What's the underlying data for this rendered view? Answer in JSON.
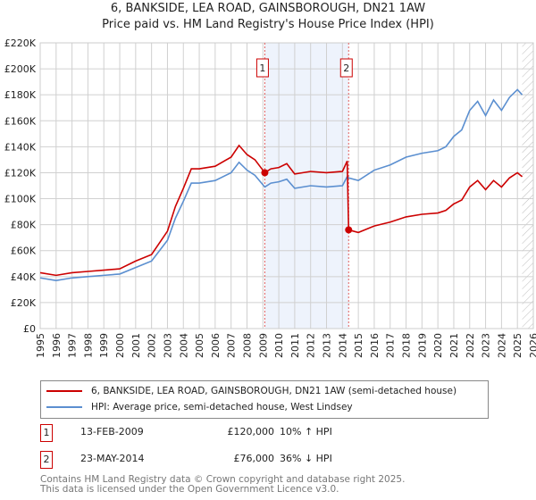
{
  "title": "6, BANKSIDE, LEA ROAD, GAINSBOROUGH, DN21 1AW",
  "subtitle": "Price paid vs. HM Land Registry's House Price Index (HPI)",
  "chart_data": {
    "type": "line",
    "title": "6, BANKSIDE, LEA ROAD, GAINSBOROUGH, DN21 1AW",
    "xlim": [
      1995,
      2026
    ],
    "ylim": [
      0,
      220000
    ],
    "x_ticks": [
      "1995",
      "1996",
      "1997",
      "1998",
      "1999",
      "2000",
      "2001",
      "2002",
      "2003",
      "2004",
      "2005",
      "2006",
      "2007",
      "2008",
      "2009",
      "2010",
      "2011",
      "2012",
      "2013",
      "2014",
      "2015",
      "2016",
      "2017",
      "2018",
      "2019",
      "2020",
      "2021",
      "2022",
      "2023",
      "2024",
      "2025",
      "2026"
    ],
    "y_ticks": [
      "£0",
      "£20K",
      "£40K",
      "£60K",
      "£80K",
      "£100K",
      "£120K",
      "£140K",
      "£160K",
      "£180K",
      "£200K",
      "£220K"
    ],
    "grid": true,
    "shaded_region": [
      2009.12,
      2014.39
    ],
    "hatched_from": 2025.3,
    "series": [
      {
        "name": "6, BANKSIDE, LEA ROAD, GAINSBOROUGH, DN21 1AW (semi-detached house)",
        "color": "#cc0000",
        "x": [
          1995,
          1996,
          1997,
          1998,
          1999,
          2000,
          2001,
          2002,
          2003,
          2003.5,
          2004,
          2004.5,
          2005,
          2006,
          2007,
          2007.5,
          2008,
          2008.5,
          2009.12,
          2009.5,
          2010,
          2010.5,
          2011,
          2012,
          2013,
          2014,
          2014.3,
          2014.39,
          2015,
          2016,
          2017,
          2018,
          2019,
          2020,
          2020.5,
          2021,
          2021.5,
          2022,
          2022.5,
          2023,
          2023.5,
          2024,
          2024.5,
          2025,
          2025.3
        ],
        "y": [
          43000,
          41000,
          43000,
          44000,
          45000,
          46000,
          52000,
          57000,
          75000,
          94000,
          108000,
          123000,
          123000,
          125000,
          132000,
          141000,
          134000,
          130000,
          120000,
          123000,
          124000,
          127000,
          119000,
          121000,
          120000,
          121000,
          129000,
          76000,
          74000,
          79000,
          82000,
          86000,
          88000,
          89000,
          91000,
          96000,
          99000,
          109000,
          114000,
          107000,
          114000,
          109000,
          116000,
          120000,
          117000
        ]
      },
      {
        "name": "HPI: Average price, semi-detached house, West Lindsey",
        "color": "#5b8fd0",
        "x": [
          1995,
          1996,
          1997,
          1998,
          1999,
          2000,
          2001,
          2002,
          2003,
          2003.5,
          2004,
          2004.5,
          2005,
          2006,
          2007,
          2007.5,
          2008,
          2008.5,
          2009.12,
          2009.5,
          2010,
          2010.5,
          2011,
          2012,
          2013,
          2014,
          2014.3,
          2014.39,
          2015,
          2016,
          2017,
          2018,
          2019,
          2020,
          2020.5,
          2021,
          2021.5,
          2022,
          2022.5,
          2023,
          2023.5,
          2024,
          2024.5,
          2025,
          2025.3
        ],
        "y": [
          39000,
          37000,
          39000,
          40000,
          41000,
          42000,
          47000,
          52000,
          68000,
          85000,
          98000,
          112000,
          112000,
          114000,
          120000,
          128000,
          122000,
          118000,
          109000,
          112000,
          113000,
          115000,
          108000,
          110000,
          109000,
          110000,
          117000,
          116000,
          114000,
          122000,
          126000,
          132000,
          135000,
          137000,
          140000,
          148000,
          153000,
          168000,
          175000,
          164000,
          176000,
          168000,
          178000,
          184000,
          180000
        ]
      }
    ],
    "annotations": [
      {
        "label": "1",
        "x": 2009.12,
        "y": 120000
      },
      {
        "label": "2",
        "x": 2014.39,
        "y": 76000
      }
    ]
  },
  "legend": [
    "6, BANKSIDE, LEA ROAD, GAINSBOROUGH, DN21 1AW (semi-detached house)",
    "HPI: Average price, semi-detached house, West Lindsey"
  ],
  "transactions": [
    {
      "num": "1",
      "date": "13-FEB-2009",
      "price": "£120,000",
      "hpi": "10% ↑ HPI"
    },
    {
      "num": "2",
      "date": "23-MAY-2014",
      "price": "£76,000",
      "hpi": "36% ↓ HPI"
    }
  ],
  "footer": [
    "Contains HM Land Registry data © Crown copyright and database right 2025.",
    "This data is licensed under the Open Government Licence v3.0."
  ]
}
